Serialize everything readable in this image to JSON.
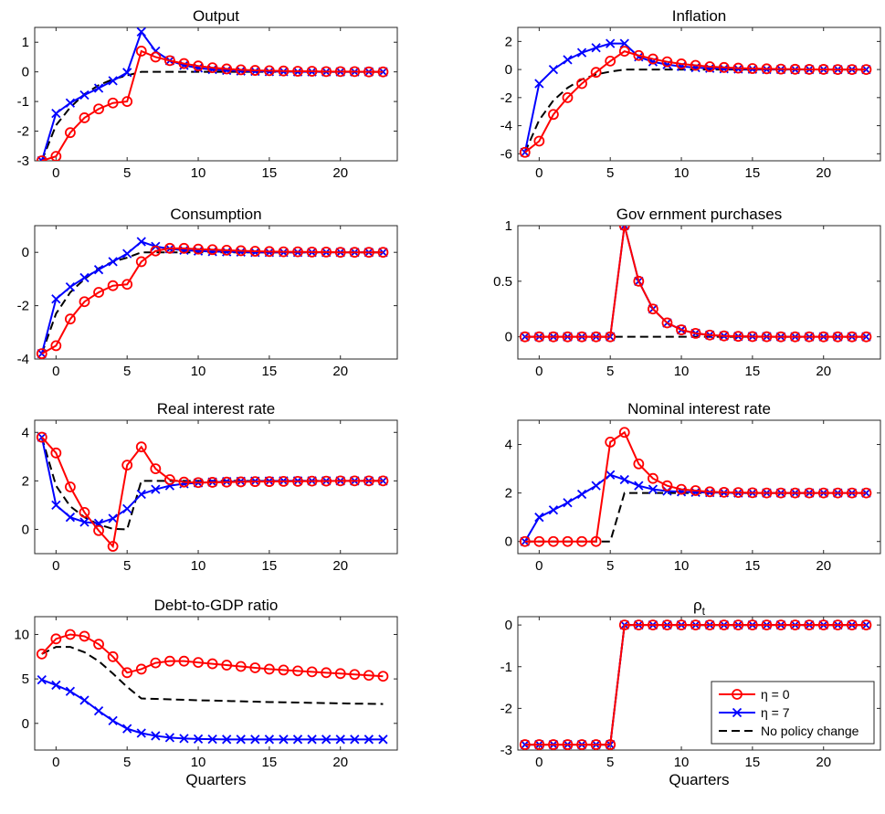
{
  "figure": {
    "xlabel_text": "Quarters"
  },
  "style": {
    "eta0_color": "#ff0000",
    "eta7_color": "#0000ff",
    "nopolicy_color": "#000000"
  },
  "legend": {
    "entries": [
      {
        "series": "eta0",
        "label": "η = 0"
      },
      {
        "series": "eta7",
        "label": "η = 7"
      },
      {
        "series": "nopolicy",
        "label": "No policy change"
      }
    ],
    "placement": "lower-right of rho_t panel"
  },
  "chart_data": [
    {
      "type": "line",
      "title": "Output",
      "xlabel": "",
      "x": [
        -1,
        0,
        1,
        2,
        3,
        4,
        5,
        6,
        7,
        8,
        9,
        10,
        11,
        12,
        13,
        14,
        15,
        16,
        17,
        18,
        19,
        20,
        21,
        22,
        23
      ],
      "xlim": [
        -1.5,
        24
      ],
      "ylim": [
        -3,
        1.5
      ],
      "xticks": [
        0,
        5,
        10,
        15,
        20
      ],
      "yticks": [
        -3,
        -2,
        -1,
        0,
        1
      ],
      "series": [
        {
          "key": "eta0",
          "marker": "circle",
          "values": [
            -3,
            -2.85,
            -2.05,
            -1.55,
            -1.25,
            -1.05,
            -1.0,
            0.7,
            0.5,
            0.38,
            0.28,
            0.2,
            0.14,
            0.1,
            0.07,
            0.05,
            0.04,
            0.03,
            0.02,
            0.02,
            0.01,
            0.01,
            0.01,
            0.0,
            0.0
          ]
        },
        {
          "key": "eta7",
          "marker": "x",
          "values": [
            -3,
            -1.4,
            -1.05,
            -0.78,
            -0.55,
            -0.3,
            -0.02,
            1.35,
            0.7,
            0.38,
            0.22,
            0.13,
            0.08,
            0.05,
            0.03,
            0.02,
            0.01,
            0.01,
            0.0,
            0.0,
            0.0,
            0.0,
            0.0,
            0.0,
            0.0
          ]
        },
        {
          "key": "nopolicy",
          "marker": "none",
          "dashed": true,
          "values": [
            -3,
            -1.8,
            -1.2,
            -0.75,
            -0.45,
            -0.25,
            -0.12,
            0,
            0,
            0,
            0,
            0,
            0,
            0,
            0,
            0,
            0,
            0,
            0,
            0,
            0,
            0,
            0,
            0,
            0
          ]
        }
      ]
    },
    {
      "type": "line",
      "title": "Inflation",
      "xlabel": "",
      "x": [
        -1,
        0,
        1,
        2,
        3,
        4,
        5,
        6,
        7,
        8,
        9,
        10,
        11,
        12,
        13,
        14,
        15,
        16,
        17,
        18,
        19,
        20,
        21,
        22,
        23
      ],
      "xlim": [
        -1.5,
        24
      ],
      "ylim": [
        -6.5,
        3
      ],
      "xticks": [
        0,
        5,
        10,
        15,
        20
      ],
      "yticks": [
        -6,
        -4,
        -2,
        0,
        2
      ],
      "series": [
        {
          "key": "eta0",
          "marker": "circle",
          "values": [
            -5.9,
            -5.1,
            -3.2,
            -2.0,
            -1.0,
            -0.2,
            0.6,
            1.3,
            1.0,
            0.75,
            0.55,
            0.4,
            0.3,
            0.2,
            0.15,
            0.1,
            0.07,
            0.05,
            0.03,
            0.02,
            0.01,
            0.01,
            0.0,
            0.0,
            0.0
          ]
        },
        {
          "key": "eta7",
          "marker": "x",
          "values": [
            -5.9,
            -1.0,
            0.0,
            0.7,
            1.2,
            1.55,
            1.85,
            1.85,
            0.9,
            0.55,
            0.35,
            0.22,
            0.14,
            0.09,
            0.06,
            0.04,
            0.02,
            0.01,
            0.01,
            0.0,
            0.0,
            0.0,
            0.0,
            0.0,
            0.0
          ]
        },
        {
          "key": "nopolicy",
          "marker": "none",
          "dashed": true,
          "values": [
            -5.9,
            -3.6,
            -2.2,
            -1.3,
            -0.7,
            -0.35,
            -0.15,
            0,
            0,
            0,
            0,
            0,
            0,
            0,
            0,
            0,
            0,
            0,
            0,
            0,
            0,
            0,
            0,
            0,
            0
          ]
        }
      ]
    },
    {
      "type": "line",
      "title": "Consumption",
      "xlabel": "",
      "x": [
        -1,
        0,
        1,
        2,
        3,
        4,
        5,
        6,
        7,
        8,
        9,
        10,
        11,
        12,
        13,
        14,
        15,
        16,
        17,
        18,
        19,
        20,
        21,
        22,
        23
      ],
      "xlim": [
        -1.5,
        24
      ],
      "ylim": [
        -4,
        1
      ],
      "xticks": [
        0,
        5,
        10,
        15,
        20
      ],
      "yticks": [
        -4,
        -2,
        0
      ],
      "series": [
        {
          "key": "eta0",
          "marker": "circle",
          "values": [
            -3.8,
            -3.5,
            -2.5,
            -1.85,
            -1.5,
            -1.25,
            -1.2,
            -0.35,
            0.05,
            0.15,
            0.15,
            0.12,
            0.1,
            0.08,
            0.06,
            0.04,
            0.03,
            0.02,
            0.02,
            0.01,
            0.01,
            0.0,
            0.0,
            0.0,
            0.0
          ]
        },
        {
          "key": "eta7",
          "marker": "x",
          "values": [
            -3.8,
            -1.75,
            -1.3,
            -0.95,
            -0.65,
            -0.35,
            -0.05,
            0.4,
            0.22,
            0.13,
            0.08,
            0.05,
            0.03,
            0.02,
            0.01,
            0.0,
            0.0,
            0.0,
            0.0,
            0.0,
            0.0,
            0.0,
            0.0,
            0.0,
            0.0
          ]
        },
        {
          "key": "nopolicy",
          "marker": "none",
          "dashed": true,
          "values": [
            -3.8,
            -2.3,
            -1.5,
            -1.0,
            -0.6,
            -0.35,
            -0.2,
            0,
            0,
            0,
            0,
            0,
            0,
            0,
            0,
            0,
            0,
            0,
            0,
            0,
            0,
            0,
            0,
            0,
            0
          ]
        }
      ]
    },
    {
      "type": "line",
      "title": "Gov ernment purchases",
      "xlabel": "",
      "x": [
        -1,
        0,
        1,
        2,
        3,
        4,
        5,
        6,
        7,
        8,
        9,
        10,
        11,
        12,
        13,
        14,
        15,
        16,
        17,
        18,
        19,
        20,
        21,
        22,
        23
      ],
      "xlim": [
        -1.5,
        24
      ],
      "ylim": [
        -0.2,
        1
      ],
      "xticks": [
        0,
        5,
        10,
        15,
        20
      ],
      "yticks": [
        0,
        0.5,
        1
      ],
      "series": [
        {
          "key": "eta0",
          "marker": "circle",
          "values": [
            0,
            0,
            0,
            0,
            0,
            0,
            0,
            1.0,
            0.5,
            0.25,
            0.125,
            0.0625,
            0.031,
            0.016,
            0.008,
            0.004,
            0.002,
            0.001,
            0,
            0,
            0,
            0,
            0,
            0,
            0
          ]
        },
        {
          "key": "eta7",
          "marker": "x",
          "values": [
            0,
            0,
            0,
            0,
            0,
            0,
            0,
            1.0,
            0.5,
            0.25,
            0.125,
            0.0625,
            0.031,
            0.016,
            0.008,
            0.004,
            0.002,
            0.001,
            0,
            0,
            0,
            0,
            0,
            0,
            0
          ]
        },
        {
          "key": "nopolicy",
          "marker": "none",
          "dashed": true,
          "values": [
            0,
            0,
            0,
            0,
            0,
            0,
            0,
            0,
            0,
            0,
            0,
            0,
            0,
            0,
            0,
            0,
            0,
            0,
            0,
            0,
            0,
            0,
            0,
            0,
            0
          ]
        }
      ]
    },
    {
      "type": "line",
      "title": "Real interest rate",
      "xlabel": "",
      "x": [
        -1,
        0,
        1,
        2,
        3,
        4,
        5,
        6,
        7,
        8,
        9,
        10,
        11,
        12,
        13,
        14,
        15,
        16,
        17,
        18,
        19,
        20,
        21,
        22,
        23
      ],
      "xlim": [
        -1.5,
        24
      ],
      "ylim": [
        -1,
        4.5
      ],
      "xticks": [
        0,
        5,
        10,
        15,
        20
      ],
      "yticks": [
        0,
        2,
        4
      ],
      "series": [
        {
          "key": "eta0",
          "marker": "circle",
          "values": [
            3.8,
            3.15,
            1.75,
            0.7,
            -0.05,
            -0.7,
            2.65,
            3.4,
            2.5,
            2.05,
            1.95,
            1.93,
            1.94,
            1.95,
            1.96,
            1.97,
            1.97,
            1.98,
            1.98,
            1.99,
            1.99,
            2.0,
            2.0,
            2.0,
            2.0
          ]
        },
        {
          "key": "eta7",
          "marker": "x",
          "values": [
            3.8,
            1.0,
            0.5,
            0.3,
            0.25,
            0.45,
            0.85,
            1.45,
            1.65,
            1.8,
            1.88,
            1.92,
            1.95,
            1.97,
            1.98,
            1.99,
            1.99,
            2.0,
            2.0,
            2.0,
            2.0,
            2.0,
            2.0,
            2.0,
            2.0
          ]
        },
        {
          "key": "nopolicy",
          "marker": "none",
          "dashed": true,
          "values": [
            3.8,
            1.8,
            0.95,
            0.5,
            0.2,
            0.02,
            0.0,
            2.0,
            2.0,
            2.0,
            2.0,
            2.0,
            2.0,
            2.0,
            2.0,
            2.0,
            2.0,
            2.0,
            2.0,
            2.0,
            2.0,
            2.0,
            2.0,
            2.0,
            2.0
          ]
        }
      ]
    },
    {
      "type": "line",
      "title": "Nominal interest rate",
      "xlabel": "",
      "x": [
        -1,
        0,
        1,
        2,
        3,
        4,
        5,
        6,
        7,
        8,
        9,
        10,
        11,
        12,
        13,
        14,
        15,
        16,
        17,
        18,
        19,
        20,
        21,
        22,
        23
      ],
      "xlim": [
        -1.5,
        24
      ],
      "ylim": [
        -0.5,
        5
      ],
      "xticks": [
        0,
        5,
        10,
        15,
        20
      ],
      "yticks": [
        0,
        2,
        4
      ],
      "series": [
        {
          "key": "eta0",
          "marker": "circle",
          "values": [
            0,
            0,
            0,
            0,
            0,
            0,
            4.1,
            4.5,
            3.2,
            2.6,
            2.3,
            2.15,
            2.1,
            2.05,
            2.03,
            2.02,
            2.01,
            2.0,
            2.0,
            2.0,
            2.0,
            2.0,
            2.0,
            2.0,
            2.0
          ]
        },
        {
          "key": "eta7",
          "marker": "x",
          "values": [
            0,
            1.0,
            1.3,
            1.6,
            1.95,
            2.3,
            2.75,
            2.55,
            2.3,
            2.15,
            2.08,
            2.05,
            2.03,
            2.02,
            2.01,
            2.0,
            2.0,
            2.0,
            2.0,
            2.0,
            2.0,
            2.0,
            2.0,
            2.0,
            2.0
          ]
        },
        {
          "key": "nopolicy",
          "marker": "none",
          "dashed": true,
          "values": [
            0,
            0,
            0,
            0,
            0,
            0,
            0,
            2.0,
            2.0,
            2.0,
            2.0,
            2.0,
            2.0,
            2.0,
            2.0,
            2.0,
            2.0,
            2.0,
            2.0,
            2.0,
            2.0,
            2.0,
            2.0,
            2.0,
            2.0
          ]
        }
      ]
    },
    {
      "type": "line",
      "title": "Debt-to-GDP ratio",
      "xlabel": "Quarters",
      "x": [
        -1,
        0,
        1,
        2,
        3,
        4,
        5,
        6,
        7,
        8,
        9,
        10,
        11,
        12,
        13,
        14,
        15,
        16,
        17,
        18,
        19,
        20,
        21,
        22,
        23
      ],
      "xlim": [
        -1.5,
        24
      ],
      "ylim": [
        -3,
        12
      ],
      "xticks": [
        0,
        5,
        10,
        15,
        20
      ],
      "yticks": [
        0,
        5,
        10
      ],
      "series": [
        {
          "key": "eta0",
          "marker": "circle",
          "values": [
            7.8,
            9.5,
            10.0,
            9.8,
            8.9,
            7.5,
            5.7,
            6.1,
            6.8,
            7.0,
            7.0,
            6.85,
            6.7,
            6.55,
            6.4,
            6.25,
            6.1,
            6.0,
            5.9,
            5.8,
            5.7,
            5.6,
            5.5,
            5.4,
            5.3
          ]
        },
        {
          "key": "eta7",
          "marker": "x",
          "values": [
            4.9,
            4.3,
            3.6,
            2.6,
            1.4,
            0.3,
            -0.6,
            -1.1,
            -1.4,
            -1.6,
            -1.7,
            -1.75,
            -1.78,
            -1.8,
            -1.8,
            -1.8,
            -1.8,
            -1.8,
            -1.8,
            -1.8,
            -1.8,
            -1.8,
            -1.8,
            -1.8,
            -1.8
          ]
        },
        {
          "key": "nopolicy",
          "marker": "none",
          "dashed": true,
          "values": [
            7.8,
            8.6,
            8.6,
            8.0,
            7.0,
            5.6,
            4.1,
            2.8,
            2.75,
            2.7,
            2.65,
            2.6,
            2.56,
            2.52,
            2.48,
            2.44,
            2.4,
            2.37,
            2.34,
            2.31,
            2.28,
            2.25,
            2.22,
            2.2,
            2.18
          ]
        }
      ]
    },
    {
      "type": "line",
      "title": "ρ",
      "title_subscript": "t",
      "xlabel": "Quarters",
      "x": [
        -1,
        0,
        1,
        2,
        3,
        4,
        5,
        6,
        7,
        8,
        9,
        10,
        11,
        12,
        13,
        14,
        15,
        16,
        17,
        18,
        19,
        20,
        21,
        22,
        23
      ],
      "xlim": [
        -1.5,
        24
      ],
      "ylim": [
        -3,
        0.2
      ],
      "xticks": [
        0,
        5,
        10,
        15,
        20
      ],
      "yticks": [
        -3,
        -2,
        -1,
        0
      ],
      "series": [
        {
          "key": "eta0",
          "marker": "circle",
          "values": [
            -2.87,
            -2.87,
            -2.87,
            -2.87,
            -2.87,
            -2.87,
            -2.87,
            0,
            0,
            0,
            0,
            0,
            0,
            0,
            0,
            0,
            0,
            0,
            0,
            0,
            0,
            0,
            0,
            0,
            0
          ]
        },
        {
          "key": "eta7",
          "marker": "x",
          "values": [
            -2.87,
            -2.87,
            -2.87,
            -2.87,
            -2.87,
            -2.87,
            -2.87,
            0,
            0,
            0,
            0,
            0,
            0,
            0,
            0,
            0,
            0,
            0,
            0,
            0,
            0,
            0,
            0,
            0,
            0
          ]
        },
        {
          "key": "nopolicy",
          "marker": "none",
          "dashed": true,
          "values": [
            -2.87,
            -2.87,
            -2.87,
            -2.87,
            -2.87,
            -2.87,
            -2.87,
            0,
            0,
            0,
            0,
            0,
            0,
            0,
            0,
            0,
            0,
            0,
            0,
            0,
            0,
            0,
            0,
            0,
            0
          ]
        }
      ],
      "has_legend": true
    }
  ]
}
